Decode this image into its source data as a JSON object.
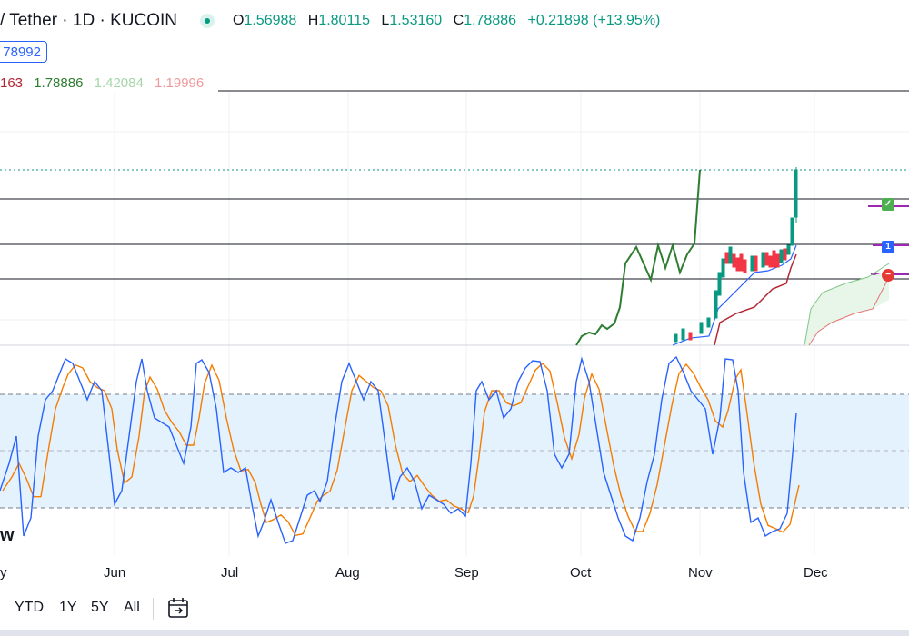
{
  "header": {
    "symbol_title": "/ Tether · 1D · KUCOIN",
    "ohlc": [
      {
        "key": "O",
        "value": "1.56988"
      },
      {
        "key": "H",
        "value": "1.80115"
      },
      {
        "key": "L",
        "value": "1.53160"
      },
      {
        "key": "C",
        "value": "1.78886"
      }
    ],
    "change": "+0.21898 (+13.95%)"
  },
  "price_badge": "78992",
  "indicator_values": [
    {
      "text": "163",
      "color": "#b22833"
    },
    {
      "text": "1.78886",
      "color": "#2e7d32"
    },
    {
      "text": "1.42084",
      "color": "#a5d6a7"
    },
    {
      "text": "1.19996",
      "color": "#ef9a9a"
    }
  ],
  "stoch_label": "w",
  "x_axis": [
    "y",
    "Jun",
    "Jul",
    "Aug",
    "Sep",
    "Oct",
    "Nov",
    "Dec"
  ],
  "bottom_bar": {
    "buttons": [
      "YTD",
      "1Y",
      "5Y",
      "All"
    ],
    "calendar_icon": "calendar-range-icon"
  },
  "flags": [
    {
      "icon": "check-icon",
      "text": "✓",
      "color": "#4caf50"
    },
    {
      "icon": "number-flag-icon",
      "text": "1",
      "color": "#2962ff"
    },
    {
      "icon": "no-entry-icon",
      "text": "−",
      "color": "#e53935"
    }
  ],
  "colors": {
    "stoch_k": "#2962ff",
    "stoch_d": "#f57c00",
    "band_fill": "#e3f2fd",
    "up_candle": "#089981",
    "down_candle": "#f23645",
    "chikou": "#2e7d32",
    "kumo_fill": "#e8f5e9"
  }
}
